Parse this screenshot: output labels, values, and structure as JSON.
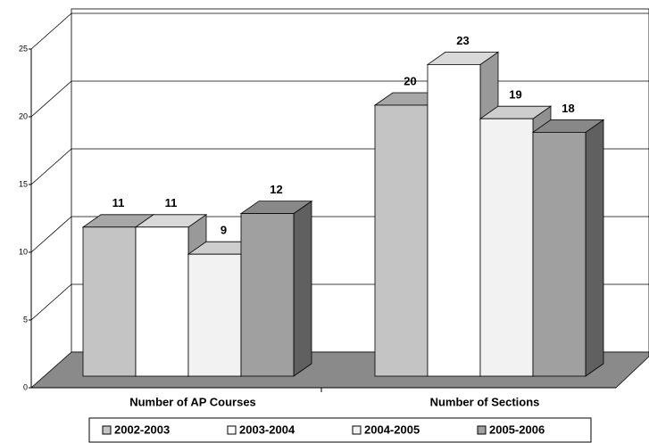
{
  "chart_data": {
    "type": "bar3d",
    "categories": [
      "Number of AP Courses",
      "Number of Sections"
    ],
    "series": [
      {
        "name": "2002-2003",
        "color": "#c4c4c4",
        "values": [
          11,
          20
        ]
      },
      {
        "name": "2003-2004",
        "color": "#ffffff",
        "values": [
          11,
          23
        ]
      },
      {
        "name": "2004-2005",
        "color": "#f2f2f2",
        "values": [
          9,
          19
        ]
      },
      {
        "name": "2005-2006",
        "color": "#a0a0a0",
        "values": [
          12,
          18
        ]
      }
    ],
    "ylim": [
      0,
      25
    ],
    "yticks": [
      0,
      5,
      10,
      15,
      20,
      25
    ],
    "grid": true,
    "legend": "bottom"
  }
}
